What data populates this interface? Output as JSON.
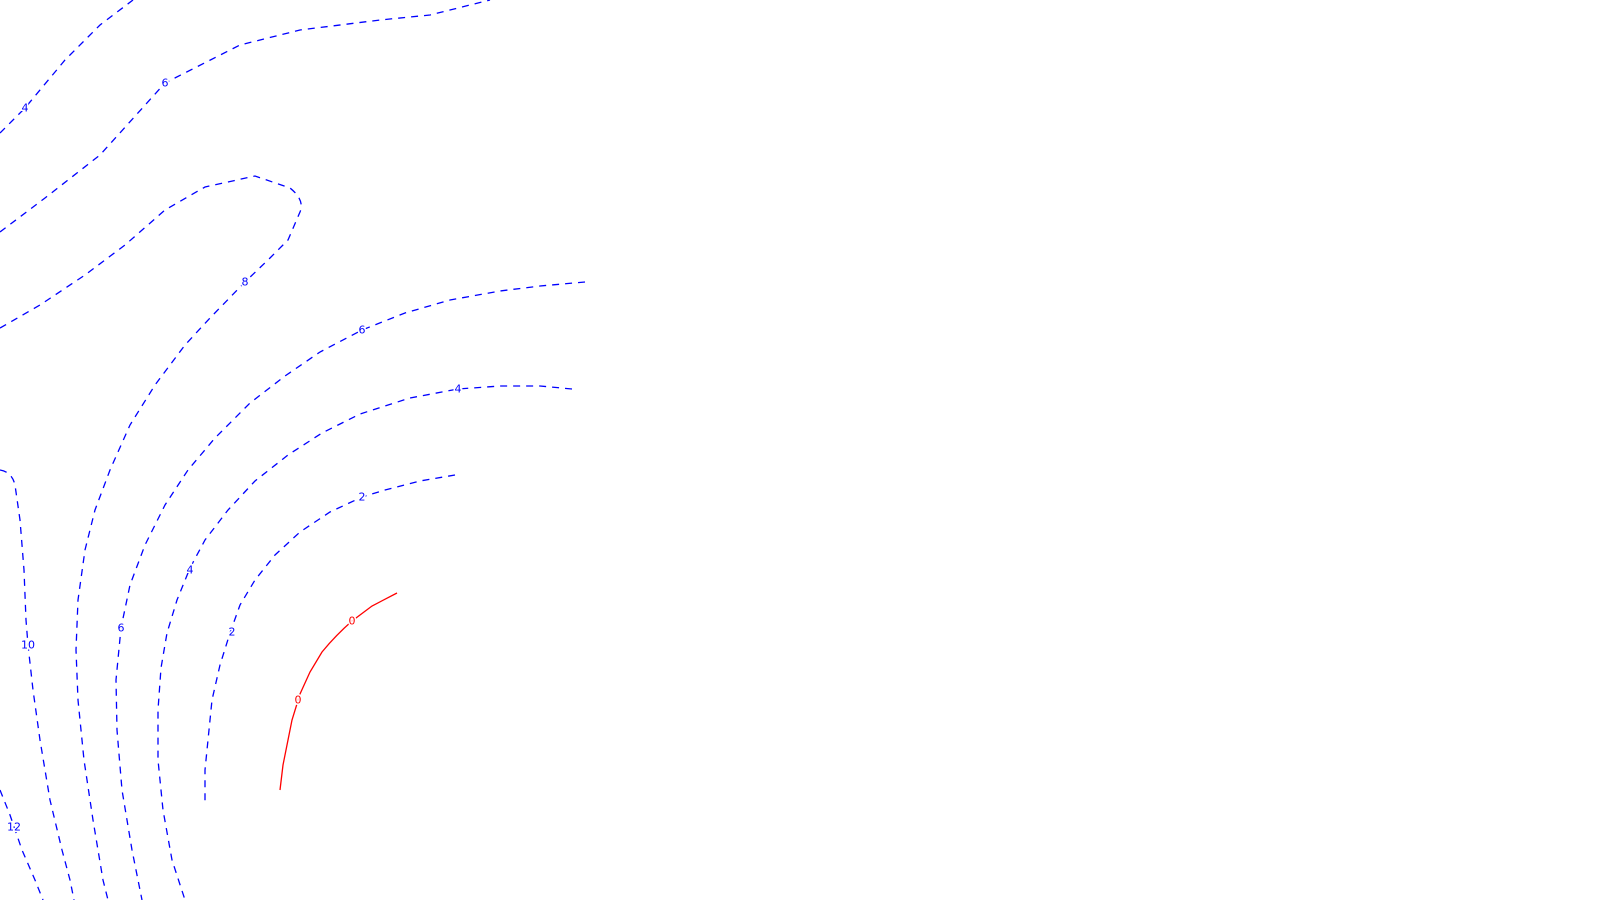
{
  "map": {
    "colors": {
      "positive": "#0000ff",
      "zero": "#ff0000",
      "background": "#ffffff"
    },
    "contours": [
      {
        "id": "c4-top",
        "level": 4,
        "labels": [
          "4"
        ]
      },
      {
        "id": "c6-top",
        "level": 6,
        "labels": [
          "6"
        ]
      },
      {
        "id": "c8",
        "level": 8,
        "labels": [
          "8"
        ]
      },
      {
        "id": "c6-mid",
        "level": 6,
        "labels": [
          "6",
          "6"
        ]
      },
      {
        "id": "c4-mid",
        "level": 4,
        "labels": [
          "4",
          "4"
        ]
      },
      {
        "id": "c2",
        "level": 2,
        "labels": [
          "2",
          "2"
        ]
      },
      {
        "id": "c10",
        "level": 10,
        "labels": [
          "10"
        ]
      },
      {
        "id": "c12",
        "level": 12,
        "labels": [
          "12"
        ]
      },
      {
        "id": "c0",
        "level": 0,
        "labels": [
          "0",
          "0"
        ]
      }
    ]
  }
}
